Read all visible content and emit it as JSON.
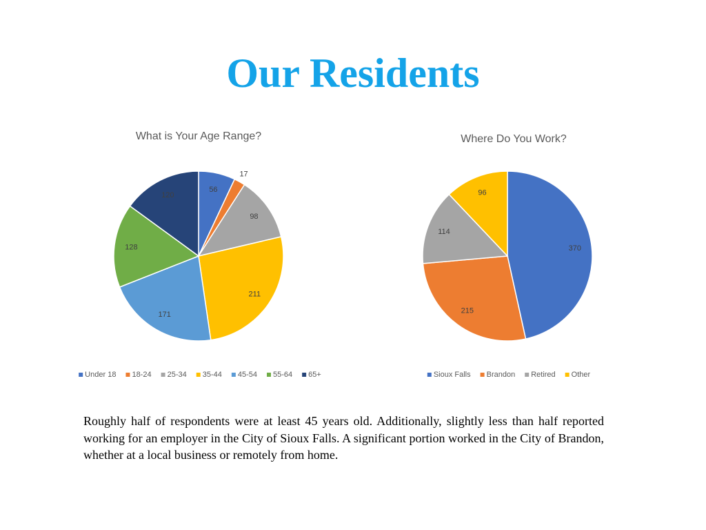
{
  "title": "Our Residents",
  "chart_data": [
    {
      "type": "pie",
      "title": "What is Your Age Range?",
      "categories": [
        "Under 18",
        "18-24",
        "25-34",
        "35-44",
        "45-54",
        "55-64",
        "65+"
      ],
      "values": [
        56,
        17,
        98,
        211,
        171,
        128,
        120
      ],
      "colors": [
        "#4472c4",
        "#ed7d31",
        "#a5a5a5",
        "#ffc000",
        "#5b9bd5",
        "#70ad47",
        "#264478"
      ],
      "legend": "bottom"
    },
    {
      "type": "pie",
      "title": "Where Do You Work?",
      "categories": [
        "Sioux Falls",
        "Brandon",
        "Retired",
        "Other"
      ],
      "values": [
        370,
        215,
        114,
        96
      ],
      "colors": [
        "#4472c4",
        "#ed7d31",
        "#a5a5a5",
        "#ffc000"
      ],
      "legend": "bottom"
    }
  ],
  "paragraph": "Roughly half of respondents were at least 45 years old. Additionally, slightly less than half reported working for an employer in the City of Sioux Falls. A significant portion worked in the City of Brandon, whether at a local business or remotely from home."
}
